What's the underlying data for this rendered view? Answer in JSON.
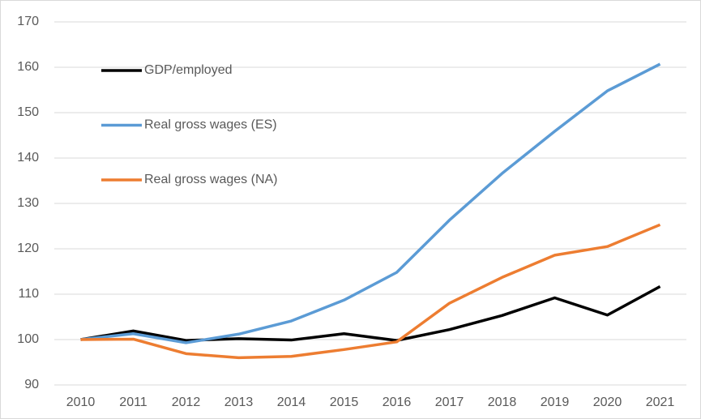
{
  "chart_data": {
    "type": "line",
    "categories": [
      "2010",
      "2011",
      "2012",
      "2013",
      "2014",
      "2015",
      "2016",
      "2017",
      "2018",
      "2019",
      "2020",
      "2021"
    ],
    "series": [
      {
        "name": "GDP/employed",
        "color": "#000000",
        "values": [
          100,
          101.9,
          99.8,
          100.2,
          99.9,
          101.3,
          99.8,
          102.2,
          105.3,
          109.2,
          105.4,
          111.7
        ]
      },
      {
        "name": "Real gross wages (ES)",
        "color": "#5b9bd5",
        "values": [
          100,
          101.3,
          99.3,
          101.2,
          104.1,
          108.7,
          114.8,
          126.3,
          136.6,
          145.9,
          154.8,
          160.7
        ]
      },
      {
        "name": "Real gross wages (NA)",
        "color": "#ed7d31",
        "values": [
          100,
          100.1,
          96.9,
          96.0,
          96.3,
          97.8,
          99.5,
          108.0,
          113.7,
          118.6,
          120.5,
          125.3
        ]
      }
    ],
    "ylim": [
      90,
      170
    ],
    "yticks": [
      90,
      100,
      110,
      120,
      130,
      140,
      150,
      160,
      170
    ],
    "grid": true,
    "legend": "upper left"
  }
}
